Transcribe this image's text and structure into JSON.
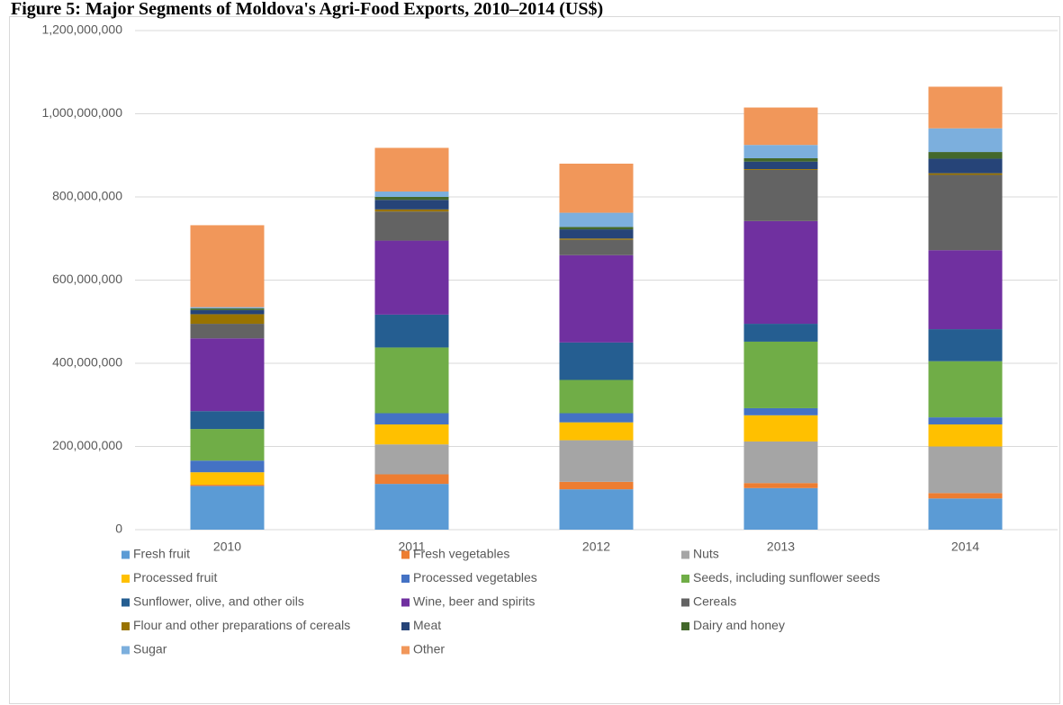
{
  "chart_data": {
    "type": "stacked_bar",
    "title": "Figure 5: Major Segments of Moldova's Agri-Food Exports, 2010–2014 (US$)",
    "categories": [
      "2010",
      "2011",
      "2012",
      "2013",
      "2014"
    ],
    "series": [
      {
        "name": "Fresh fruit",
        "color": "#5b9bd5",
        "values": [
          105000000,
          110000000,
          97000000,
          100000000,
          75000000
        ]
      },
      {
        "name": "Fresh vegetables",
        "color": "#ed7d31",
        "values": [
          3000000,
          23000000,
          18000000,
          12000000,
          13000000
        ]
      },
      {
        "name": "Nuts",
        "color": "#a5a5a5",
        "values": [
          0,
          72000000,
          100000000,
          100000000,
          112000000
        ]
      },
      {
        "name": "Processed fruit",
        "color": "#ffc000",
        "values": [
          30000000,
          48000000,
          43000000,
          63000000,
          53000000
        ]
      },
      {
        "name": "Processed vegetables",
        "color": "#4472c4",
        "values": [
          28000000,
          27000000,
          22000000,
          17000000,
          17000000
        ]
      },
      {
        "name": "Seeds, including sunflower seeds",
        "color": "#70ad47",
        "values": [
          76000000,
          158000000,
          80000000,
          160000000,
          135000000
        ]
      },
      {
        "name": "Sunflower, olive, and other oils",
        "color": "#255e91",
        "values": [
          43000000,
          79000000,
          90000000,
          43000000,
          77000000
        ]
      },
      {
        "name": "Wine, beer and spirits",
        "color": "#7030a0",
        "values": [
          175000000,
          178000000,
          210000000,
          247000000,
          190000000
        ]
      },
      {
        "name": "Cereals",
        "color": "#636363",
        "values": [
          35000000,
          70000000,
          37000000,
          123000000,
          181000000
        ]
      },
      {
        "name": "Flour and other preparations of cereals",
        "color": "#997300",
        "values": [
          23000000,
          5000000,
          3000000,
          2000000,
          4000000
        ]
      },
      {
        "name": "Meat",
        "color": "#264478",
        "values": [
          10000000,
          23000000,
          22000000,
          18000000,
          35000000
        ]
      },
      {
        "name": "Dairy and honey",
        "color": "#43682b",
        "values": [
          4000000,
          7000000,
          6000000,
          8000000,
          16000000
        ]
      },
      {
        "name": "Sugar",
        "color": "#7cafdd",
        "values": [
          3000000,
          13000000,
          34000000,
          32000000,
          57000000
        ]
      },
      {
        "name": "Other",
        "color": "#f1975a",
        "values": [
          197000000,
          105000000,
          118000000,
          90000000,
          100000000
        ]
      }
    ],
    "ylim": [
      0,
      1200000000
    ],
    "yticks": [
      0,
      {
        "value": 200000000,
        "label": "200,000,000"
      },
      {
        "value": 400000000,
        "label": "400,000,000"
      },
      {
        "value": 600000000,
        "label": "600,000,000"
      },
      {
        "value": 800000000,
        "label": "800,000,000"
      },
      {
        "value": 1000000000,
        "label": "1,000,000,000"
      },
      {
        "value": 1200000000,
        "label": "1,200,000,000"
      }
    ],
    "grid": true
  }
}
